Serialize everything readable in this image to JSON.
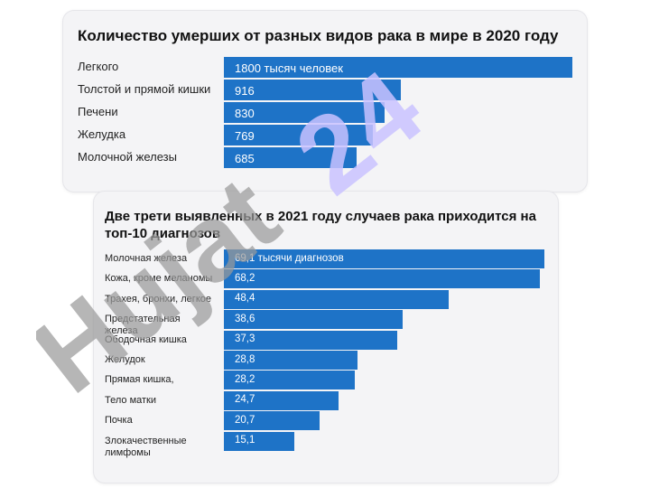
{
  "chart_data": [
    {
      "type": "bar",
      "orientation": "horizontal",
      "title": "Количество умерших от разных видов рака в мире в 2020 году",
      "categories": [
        "Легкого",
        "Толстой и прямой кишки",
        "Печени",
        "Желудка",
        "Молочной железы"
      ],
      "values": [
        1800,
        916,
        830,
        769,
        685
      ],
      "value_labels": [
        "1800 тысяч человек",
        "916",
        "830",
        "769",
        "685"
      ],
      "xlim": [
        0,
        1800
      ],
      "bar_color": "#1e73c7",
      "grid": false
    },
    {
      "type": "bar",
      "orientation": "horizontal",
      "title": "Две трети выявленных в 2021 году случаев рака приходится на топ-10 диагнозов",
      "categories": [
        "Молочная железа",
        "Кожа, кроме меланомы",
        "Трахея, бронхи, легкое",
        "Предстательная железа",
        "Ободочная кишка",
        "Желудок",
        "Прямая кишка,",
        "Тело матки",
        "Почка",
        "Злокачественные лимфомы"
      ],
      "values": [
        69.1,
        68.2,
        48.4,
        38.6,
        37.3,
        28.8,
        28.2,
        24.7,
        20.7,
        15.1
      ],
      "value_labels": [
        "69,1 тысячи диагнозов",
        "68,2",
        "48,4",
        "38,6",
        "37,3",
        "28,8",
        "28,2",
        "24,7",
        "20,7",
        "15,1"
      ],
      "xlim": [
        0,
        69.1
      ],
      "bar_color": "#1e73c7",
      "grid": false
    }
  ],
  "watermark": {
    "gray_text": "Hujat",
    "purple_text": "24",
    "gray_color": "#9a9a9a",
    "purple_color": "#c9c2ff"
  }
}
